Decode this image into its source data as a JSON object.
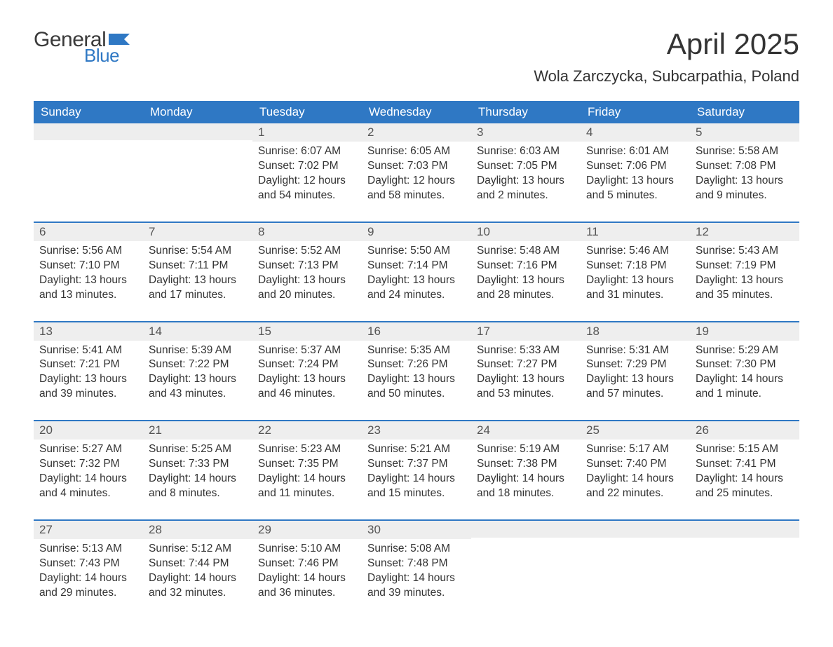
{
  "brand": {
    "word1": "General",
    "word2": "Blue",
    "flag_color": "#2f78c4"
  },
  "title": "April 2025",
  "location": "Wola Zarczycka, Subcarpathia, Poland",
  "colors": {
    "header_bg": "#2f78c4",
    "header_text": "#ffffff",
    "row_divider": "#2f78c4",
    "daynum_bg": "#eeeeee",
    "body_text": "#333333",
    "page_bg": "#ffffff"
  },
  "fonts": {
    "base_family": "Segoe UI, Arial, sans-serif",
    "title_size_pt": 32,
    "location_size_pt": 17,
    "header_size_pt": 13,
    "body_size_pt": 12
  },
  "day_headers": [
    "Sunday",
    "Monday",
    "Tuesday",
    "Wednesday",
    "Thursday",
    "Friday",
    "Saturday"
  ],
  "weeks": [
    [
      {
        "n": "",
        "lines": []
      },
      {
        "n": "",
        "lines": []
      },
      {
        "n": "1",
        "lines": [
          "Sunrise: 6:07 AM",
          "Sunset: 7:02 PM",
          "Daylight: 12 hours",
          "and 54 minutes."
        ]
      },
      {
        "n": "2",
        "lines": [
          "Sunrise: 6:05 AM",
          "Sunset: 7:03 PM",
          "Daylight: 12 hours",
          "and 58 minutes."
        ]
      },
      {
        "n": "3",
        "lines": [
          "Sunrise: 6:03 AM",
          "Sunset: 7:05 PM",
          "Daylight: 13 hours",
          "and 2 minutes."
        ]
      },
      {
        "n": "4",
        "lines": [
          "Sunrise: 6:01 AM",
          "Sunset: 7:06 PM",
          "Daylight: 13 hours",
          "and 5 minutes."
        ]
      },
      {
        "n": "5",
        "lines": [
          "Sunrise: 5:58 AM",
          "Sunset: 7:08 PM",
          "Daylight: 13 hours",
          "and 9 minutes."
        ]
      }
    ],
    [
      {
        "n": "6",
        "lines": [
          "Sunrise: 5:56 AM",
          "Sunset: 7:10 PM",
          "Daylight: 13 hours",
          "and 13 minutes."
        ]
      },
      {
        "n": "7",
        "lines": [
          "Sunrise: 5:54 AM",
          "Sunset: 7:11 PM",
          "Daylight: 13 hours",
          "and 17 minutes."
        ]
      },
      {
        "n": "8",
        "lines": [
          "Sunrise: 5:52 AM",
          "Sunset: 7:13 PM",
          "Daylight: 13 hours",
          "and 20 minutes."
        ]
      },
      {
        "n": "9",
        "lines": [
          "Sunrise: 5:50 AM",
          "Sunset: 7:14 PM",
          "Daylight: 13 hours",
          "and 24 minutes."
        ]
      },
      {
        "n": "10",
        "lines": [
          "Sunrise: 5:48 AM",
          "Sunset: 7:16 PM",
          "Daylight: 13 hours",
          "and 28 minutes."
        ]
      },
      {
        "n": "11",
        "lines": [
          "Sunrise: 5:46 AM",
          "Sunset: 7:18 PM",
          "Daylight: 13 hours",
          "and 31 minutes."
        ]
      },
      {
        "n": "12",
        "lines": [
          "Sunrise: 5:43 AM",
          "Sunset: 7:19 PM",
          "Daylight: 13 hours",
          "and 35 minutes."
        ]
      }
    ],
    [
      {
        "n": "13",
        "lines": [
          "Sunrise: 5:41 AM",
          "Sunset: 7:21 PM",
          "Daylight: 13 hours",
          "and 39 minutes."
        ]
      },
      {
        "n": "14",
        "lines": [
          "Sunrise: 5:39 AM",
          "Sunset: 7:22 PM",
          "Daylight: 13 hours",
          "and 43 minutes."
        ]
      },
      {
        "n": "15",
        "lines": [
          "Sunrise: 5:37 AM",
          "Sunset: 7:24 PM",
          "Daylight: 13 hours",
          "and 46 minutes."
        ]
      },
      {
        "n": "16",
        "lines": [
          "Sunrise: 5:35 AM",
          "Sunset: 7:26 PM",
          "Daylight: 13 hours",
          "and 50 minutes."
        ]
      },
      {
        "n": "17",
        "lines": [
          "Sunrise: 5:33 AM",
          "Sunset: 7:27 PM",
          "Daylight: 13 hours",
          "and 53 minutes."
        ]
      },
      {
        "n": "18",
        "lines": [
          "Sunrise: 5:31 AM",
          "Sunset: 7:29 PM",
          "Daylight: 13 hours",
          "and 57 minutes."
        ]
      },
      {
        "n": "19",
        "lines": [
          "Sunrise: 5:29 AM",
          "Sunset: 7:30 PM",
          "Daylight: 14 hours",
          "and 1 minute."
        ]
      }
    ],
    [
      {
        "n": "20",
        "lines": [
          "Sunrise: 5:27 AM",
          "Sunset: 7:32 PM",
          "Daylight: 14 hours",
          "and 4 minutes."
        ]
      },
      {
        "n": "21",
        "lines": [
          "Sunrise: 5:25 AM",
          "Sunset: 7:33 PM",
          "Daylight: 14 hours",
          "and 8 minutes."
        ]
      },
      {
        "n": "22",
        "lines": [
          "Sunrise: 5:23 AM",
          "Sunset: 7:35 PM",
          "Daylight: 14 hours",
          "and 11 minutes."
        ]
      },
      {
        "n": "23",
        "lines": [
          "Sunrise: 5:21 AM",
          "Sunset: 7:37 PM",
          "Daylight: 14 hours",
          "and 15 minutes."
        ]
      },
      {
        "n": "24",
        "lines": [
          "Sunrise: 5:19 AM",
          "Sunset: 7:38 PM",
          "Daylight: 14 hours",
          "and 18 minutes."
        ]
      },
      {
        "n": "25",
        "lines": [
          "Sunrise: 5:17 AM",
          "Sunset: 7:40 PM",
          "Daylight: 14 hours",
          "and 22 minutes."
        ]
      },
      {
        "n": "26",
        "lines": [
          "Sunrise: 5:15 AM",
          "Sunset: 7:41 PM",
          "Daylight: 14 hours",
          "and 25 minutes."
        ]
      }
    ],
    [
      {
        "n": "27",
        "lines": [
          "Sunrise: 5:13 AM",
          "Sunset: 7:43 PM",
          "Daylight: 14 hours",
          "and 29 minutes."
        ]
      },
      {
        "n": "28",
        "lines": [
          "Sunrise: 5:12 AM",
          "Sunset: 7:44 PM",
          "Daylight: 14 hours",
          "and 32 minutes."
        ]
      },
      {
        "n": "29",
        "lines": [
          "Sunrise: 5:10 AM",
          "Sunset: 7:46 PM",
          "Daylight: 14 hours",
          "and 36 minutes."
        ]
      },
      {
        "n": "30",
        "lines": [
          "Sunrise: 5:08 AM",
          "Sunset: 7:48 PM",
          "Daylight: 14 hours",
          "and 39 minutes."
        ]
      },
      {
        "n": "",
        "lines": []
      },
      {
        "n": "",
        "lines": []
      },
      {
        "n": "",
        "lines": []
      }
    ]
  ]
}
